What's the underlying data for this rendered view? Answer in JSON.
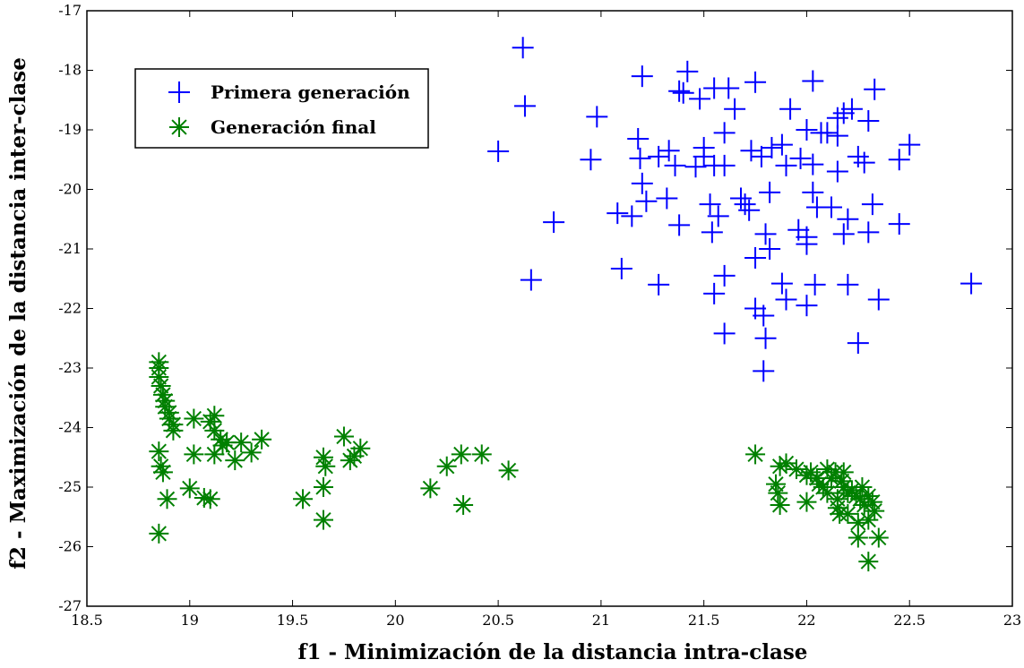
{
  "chart_data": {
    "type": "scatter",
    "title": "",
    "xlabel": "f1 - Minimización de la distancia intra-clase",
    "ylabel": "f2 - Maximización de la distancia inter-clase",
    "xlim": [
      18.5,
      23
    ],
    "ylim": [
      -27,
      -17
    ],
    "xticks": [
      "18.5",
      "19",
      "19.5",
      "20",
      "20.5",
      "21",
      "21.5",
      "22",
      "22.5",
      "23"
    ],
    "yticks": [
      "-17",
      "-18",
      "-19",
      "-20",
      "-21",
      "-22",
      "-23",
      "-24",
      "-25",
      "-26",
      "-27"
    ],
    "grid": false,
    "legend_position": "top-left",
    "series": [
      {
        "name": "Primera generación",
        "marker": "plus",
        "color": "#0000ff",
        "points": [
          [
            20.62,
            -17.62
          ],
          [
            20.63,
            -18.6
          ],
          [
            20.5,
            -19.36
          ],
          [
            20.66,
            -21.52
          ],
          [
            20.77,
            -20.55
          ],
          [
            20.95,
            -19.5
          ],
          [
            20.98,
            -18.78
          ],
          [
            21.1,
            -21.33
          ],
          [
            21.08,
            -20.4
          ],
          [
            21.15,
            -20.45
          ],
          [
            21.18,
            -19.15
          ],
          [
            21.2,
            -18.1
          ],
          [
            21.19,
            -19.48
          ],
          [
            21.2,
            -19.9
          ],
          [
            21.22,
            -20.2
          ],
          [
            21.28,
            -21.6
          ],
          [
            21.28,
            -19.45
          ],
          [
            21.33,
            -19.35
          ],
          [
            21.32,
            -20.15
          ],
          [
            21.36,
            -19.6
          ],
          [
            21.38,
            -18.35
          ],
          [
            21.4,
            -18.38
          ],
          [
            21.42,
            -18.02
          ],
          [
            21.38,
            -20.6
          ],
          [
            21.46,
            -19.62
          ],
          [
            21.48,
            -18.48
          ],
          [
            21.5,
            -19.3
          ],
          [
            21.5,
            -19.45
          ],
          [
            21.53,
            -20.25
          ],
          [
            21.55,
            -18.3
          ],
          [
            21.55,
            -19.6
          ],
          [
            21.54,
            -20.72
          ],
          [
            21.55,
            -21.75
          ],
          [
            21.57,
            -20.45
          ],
          [
            21.6,
            -19.05
          ],
          [
            21.6,
            -19.6
          ],
          [
            21.6,
            -21.45
          ],
          [
            21.6,
            -22.42
          ],
          [
            21.62,
            -18.3
          ],
          [
            21.65,
            -18.65
          ],
          [
            21.68,
            -20.15
          ],
          [
            21.7,
            -20.25
          ],
          [
            21.72,
            -20.35
          ],
          [
            21.73,
            -19.35
          ],
          [
            21.75,
            -18.2
          ],
          [
            21.75,
            -21.15
          ],
          [
            21.75,
            -22.0
          ],
          [
            21.78,
            -19.45
          ],
          [
            21.79,
            -22.12
          ],
          [
            21.8,
            -20.75
          ],
          [
            21.82,
            -21.0
          ],
          [
            21.82,
            -20.05
          ],
          [
            21.83,
            -19.3
          ],
          [
            21.8,
            -22.5
          ],
          [
            21.79,
            -23.05
          ],
          [
            21.88,
            -19.25
          ],
          [
            21.88,
            -21.58
          ],
          [
            21.9,
            -21.85
          ],
          [
            21.9,
            -19.6
          ],
          [
            21.92,
            -18.65
          ],
          [
            21.96,
            -20.68
          ],
          [
            21.97,
            -19.48
          ],
          [
            22.0,
            -20.8
          ],
          [
            22.0,
            -20.92
          ],
          [
            22.0,
            -19.0
          ],
          [
            22.0,
            -21.95
          ],
          [
            22.03,
            -18.18
          ],
          [
            22.03,
            -19.58
          ],
          [
            22.03,
            -20.05
          ],
          [
            22.04,
            -21.6
          ],
          [
            22.05,
            -20.3
          ],
          [
            22.07,
            -19.05
          ],
          [
            22.1,
            -19.05
          ],
          [
            22.12,
            -20.3
          ],
          [
            22.15,
            -19.7
          ],
          [
            22.15,
            -19.1
          ],
          [
            22.15,
            -18.8
          ],
          [
            22.18,
            -18.72
          ],
          [
            22.18,
            -20.75
          ],
          [
            22.2,
            -20.5
          ],
          [
            22.2,
            -21.6
          ],
          [
            22.22,
            -18.65
          ],
          [
            22.25,
            -19.45
          ],
          [
            22.25,
            -22.58
          ],
          [
            22.28,
            -19.55
          ],
          [
            22.3,
            -18.85
          ],
          [
            22.3,
            -20.72
          ],
          [
            22.32,
            -20.25
          ],
          [
            22.33,
            -18.32
          ],
          [
            22.35,
            -21.85
          ],
          [
            22.45,
            -19.5
          ],
          [
            22.45,
            -20.58
          ],
          [
            22.5,
            -19.25
          ],
          [
            22.8,
            -21.58
          ]
        ]
      },
      {
        "name": "Generación final",
        "marker": "asterisk",
        "color": "#008000",
        "points": [
          [
            18.85,
            -22.9
          ],
          [
            18.85,
            -23.0
          ],
          [
            18.85,
            -23.15
          ],
          [
            18.86,
            -23.3
          ],
          [
            18.87,
            -23.45
          ],
          [
            18.88,
            -23.55
          ],
          [
            18.88,
            -23.65
          ],
          [
            18.9,
            -23.75
          ],
          [
            18.9,
            -23.85
          ],
          [
            18.92,
            -23.95
          ],
          [
            18.92,
            -24.05
          ],
          [
            18.85,
            -24.4
          ],
          [
            18.86,
            -24.65
          ],
          [
            18.87,
            -24.75
          ],
          [
            18.89,
            -25.2
          ],
          [
            18.85,
            -25.78
          ],
          [
            19.0,
            -25.02
          ],
          [
            19.07,
            -25.18
          ],
          [
            19.1,
            -25.2
          ],
          [
            19.02,
            -24.45
          ],
          [
            19.02,
            -23.85
          ],
          [
            19.1,
            -23.9
          ],
          [
            19.12,
            -23.8
          ],
          [
            19.12,
            -24.05
          ],
          [
            19.15,
            -24.2
          ],
          [
            19.16,
            -24.3
          ],
          [
            19.18,
            -24.25
          ],
          [
            19.12,
            -24.45
          ],
          [
            19.22,
            -24.55
          ],
          [
            19.3,
            -24.42
          ],
          [
            19.35,
            -24.2
          ],
          [
            19.25,
            -24.25
          ],
          [
            19.55,
            -25.2
          ],
          [
            19.65,
            -24.5
          ],
          [
            19.66,
            -24.65
          ],
          [
            19.65,
            -25.0
          ],
          [
            19.65,
            -25.55
          ],
          [
            19.75,
            -24.15
          ],
          [
            19.78,
            -24.55
          ],
          [
            19.8,
            -24.48
          ],
          [
            19.83,
            -24.35
          ],
          [
            20.17,
            -25.02
          ],
          [
            20.25,
            -24.65
          ],
          [
            20.32,
            -24.45
          ],
          [
            20.33,
            -25.3
          ],
          [
            20.42,
            -24.45
          ],
          [
            20.55,
            -24.72
          ],
          [
            21.75,
            -24.45
          ],
          [
            21.85,
            -24.95
          ],
          [
            21.86,
            -25.1
          ],
          [
            21.87,
            -25.3
          ],
          [
            21.87,
            -24.65
          ],
          [
            21.9,
            -24.6
          ],
          [
            21.95,
            -24.7
          ],
          [
            22.0,
            -25.25
          ],
          [
            22.0,
            -24.8
          ],
          [
            22.02,
            -24.75
          ],
          [
            22.05,
            -24.85
          ],
          [
            22.06,
            -24.95
          ],
          [
            22.08,
            -25.0
          ],
          [
            22.1,
            -25.1
          ],
          [
            22.12,
            -24.85
          ],
          [
            22.14,
            -24.75
          ],
          [
            22.15,
            -25.2
          ],
          [
            22.15,
            -25.35
          ],
          [
            22.16,
            -25.45
          ],
          [
            22.17,
            -24.9
          ],
          [
            22.18,
            -25.0
          ],
          [
            22.2,
            -25.1
          ],
          [
            22.2,
            -25.45
          ],
          [
            22.22,
            -25.05
          ],
          [
            22.24,
            -25.15
          ],
          [
            22.25,
            -25.6
          ],
          [
            22.26,
            -25.2
          ],
          [
            22.27,
            -25.0
          ],
          [
            22.28,
            -25.3
          ],
          [
            22.3,
            -25.15
          ],
          [
            22.3,
            -25.55
          ],
          [
            22.25,
            -25.85
          ],
          [
            22.32,
            -25.25
          ],
          [
            22.33,
            -25.4
          ],
          [
            22.35,
            -25.85
          ],
          [
            22.3,
            -26.25
          ],
          [
            22.18,
            -24.75
          ],
          [
            22.1,
            -24.7
          ]
        ]
      }
    ]
  }
}
